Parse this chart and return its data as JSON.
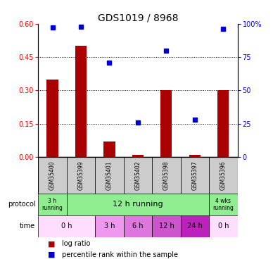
{
  "title": "GDS1019 / 8968",
  "samples": [
    "GSM35400",
    "GSM35399",
    "GSM35401",
    "GSM35402",
    "GSM35398",
    "GSM35397",
    "GSM35396"
  ],
  "log_ratio": [
    0.35,
    0.5,
    0.07,
    0.01,
    0.3,
    0.01,
    0.3
  ],
  "percentile_rank": [
    97,
    98,
    71,
    26,
    80,
    28,
    96
  ],
  "ylim_left": [
    0,
    0.6
  ],
  "ylim_right": [
    0,
    100
  ],
  "yticks_left": [
    0,
    0.15,
    0.3,
    0.45,
    0.6
  ],
  "yticks_right": [
    0,
    25,
    50,
    75,
    100
  ],
  "ytick_labels_right": [
    "0",
    "25",
    "50",
    "75",
    "100%"
  ],
  "bar_color": "#aa0000",
  "dot_color": "#0000cc",
  "sample_bg": "#cccccc",
  "proto_data": [
    [
      0,
      1,
      "3 h\nrunning",
      "#90ee90"
    ],
    [
      1,
      6,
      "12 h running",
      "#90ee90"
    ],
    [
      6,
      7,
      "4 wks\nrunning",
      "#90ee90"
    ]
  ],
  "time_data": [
    [
      0,
      2,
      "0 h",
      "#ffddff"
    ],
    [
      2,
      3,
      "3 h",
      "#ee99ee"
    ],
    [
      3,
      4,
      "6 h",
      "#dd77dd"
    ],
    [
      4,
      5,
      "12 h",
      "#cc55cc"
    ],
    [
      5,
      6,
      "24 h",
      "#bb22bb"
    ],
    [
      6,
      7,
      "0 h",
      "#ffddff"
    ]
  ],
  "legend_items": [
    [
      "log ratio",
      "#aa0000"
    ],
    [
      "percentile rank within the sample",
      "#0000cc"
    ]
  ]
}
